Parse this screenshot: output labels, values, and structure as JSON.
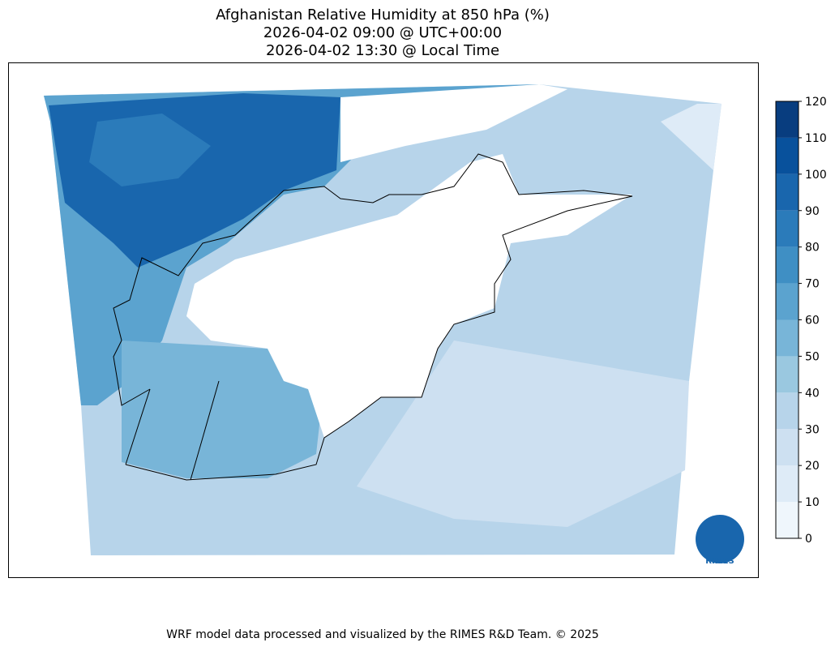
{
  "title": [
    "Afghanistan Relative Humidity at 850 hPa (%)",
    "2026-04-02 09:00 @ UTC+00:00",
    "2026-04-02 13:30 @ Local Time"
  ],
  "colorbar": {
    "ticks": [
      0,
      10,
      20,
      30,
      40,
      50,
      60,
      70,
      80,
      90,
      100,
      110,
      120
    ],
    "colors": [
      "#eff6fc",
      "#deebf7",
      "#cde0f1",
      "#b7d4ea",
      "#9ac8e0",
      "#78b5d8",
      "#5ba3cf",
      "#3f8fc4",
      "#2b7bba",
      "#1966ad",
      "#08519c",
      "#083d7f"
    ]
  },
  "logo": "RIMES",
  "footer": "WRF model data processed and visualized by the RIMES R&D Team. © 2025"
}
